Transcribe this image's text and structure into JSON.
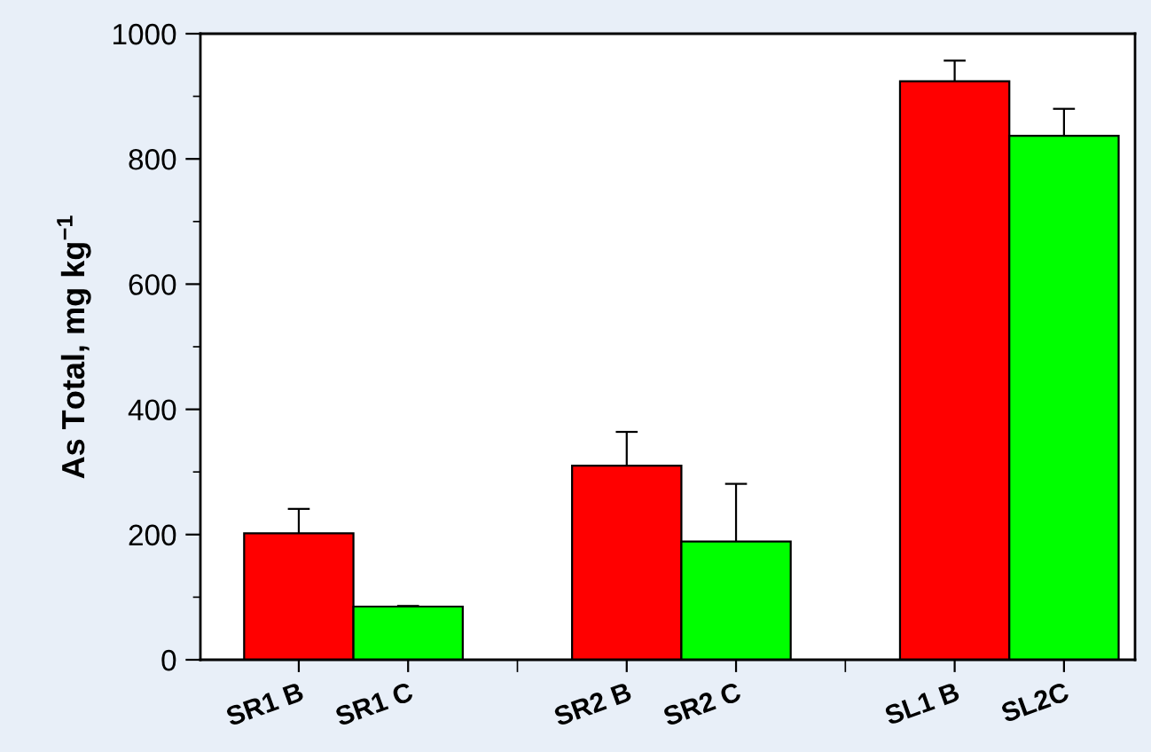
{
  "chart_data": {
    "type": "bar",
    "ylabel": "As Total, mg kg$^{−1}$",
    "categories": [
      "SR1 B",
      "SR1 C",
      "SR2 B",
      "SR2 C",
      "SL1 B",
      "SL2C"
    ],
    "values": [
      202,
      85,
      310,
      189,
      924,
      837
    ],
    "colors": [
      "#ff0000",
      "#00ff00",
      "#ff0000",
      "#00ff00",
      "#ff0000",
      "#00ff00"
    ],
    "errors": [
      [
        202,
        241
      ],
      [
        85,
        86
      ],
      [
        310,
        364
      ],
      [
        189,
        281
      ],
      [
        924,
        957
      ],
      [
        837,
        880
      ]
    ],
    "ylim": [
      0,
      1000
    ],
    "yticks": [
      0,
      200,
      400,
      600,
      800,
      1000
    ],
    "grid": false
  }
}
